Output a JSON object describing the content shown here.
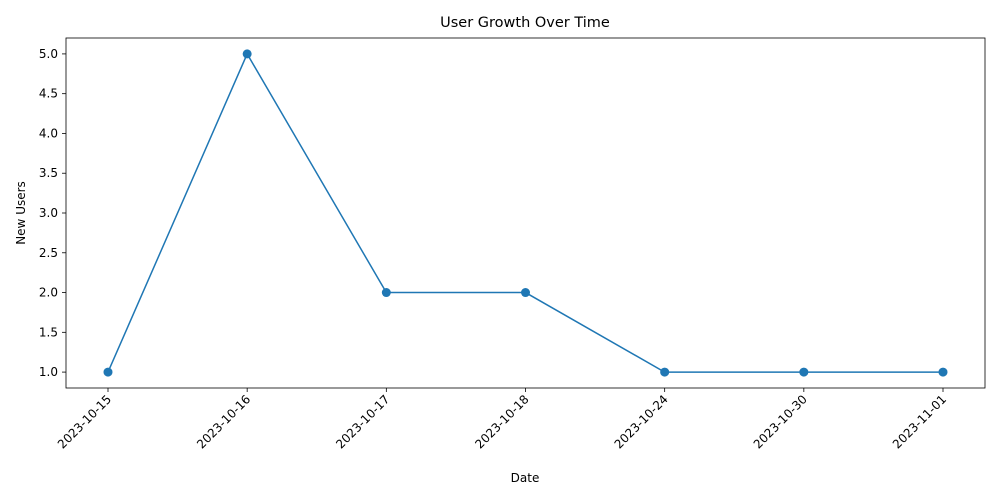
{
  "chart_data": {
    "type": "line",
    "title": "User Growth Over Time",
    "xlabel": "Date",
    "ylabel": "New Users",
    "categories": [
      "2023-10-15",
      "2023-10-16",
      "2023-10-17",
      "2023-10-18",
      "2023-10-24",
      "2023-10-30",
      "2023-11-01"
    ],
    "series": [
      {
        "values": [
          1,
          5,
          2,
          2,
          1,
          1,
          1
        ]
      }
    ],
    "yticks": [
      "1.0",
      "1.5",
      "2.0",
      "2.5",
      "3.0",
      "3.5",
      "4.0",
      "4.5",
      "5.0"
    ],
    "ylim": [
      0.8,
      5.2
    ],
    "grid": false,
    "marker": "circle",
    "color": "#1f77b4"
  }
}
